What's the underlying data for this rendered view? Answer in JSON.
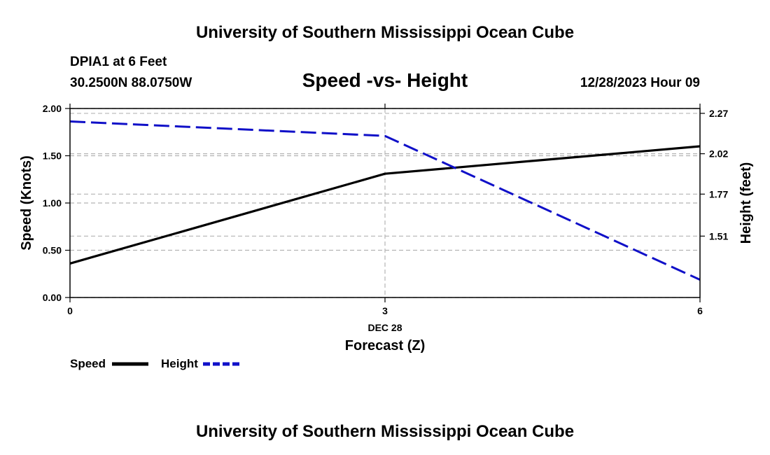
{
  "header": {
    "top_title": "University of Southern Mississippi Ocean Cube",
    "bottom_title": "University of Southern Mississippi Ocean Cube",
    "station": "DPIA1 at 6 Feet",
    "coords": "30.2500N  88.0750W",
    "datetime": "12/28/2023 Hour 09"
  },
  "chart_data": {
    "type": "line",
    "title": "Speed -vs- Height",
    "xlabel": "Forecast (Z)",
    "x_date_label": "DEC 28",
    "x": [
      0,
      3,
      6
    ],
    "x_tick_labels": [
      "0",
      "3",
      "6"
    ],
    "xlim": [
      0,
      6
    ],
    "ylabel_left": "Speed (Knots)",
    "ylim_left": [
      0,
      2
    ],
    "yticks_left": [
      "0.00",
      "0.50",
      "1.00",
      "1.50",
      "2.00"
    ],
    "ylabel_right": "Height (feet)",
    "ylim_right": [
      1.13,
      2.3
    ],
    "yticks_right": [
      "1.51",
      "1.77",
      "2.02",
      "2.27"
    ],
    "series": [
      {
        "name": "Speed",
        "axis": "left",
        "color": "#000000",
        "dash": "solid",
        "values": [
          0.36,
          1.31,
          1.6
        ]
      },
      {
        "name": "Height",
        "axis": "right",
        "color": "#1010c8",
        "dash": "dashed",
        "values": [
          2.22,
          2.13,
          1.24
        ]
      }
    ],
    "grid": true,
    "legend_position": "bottom-left"
  }
}
